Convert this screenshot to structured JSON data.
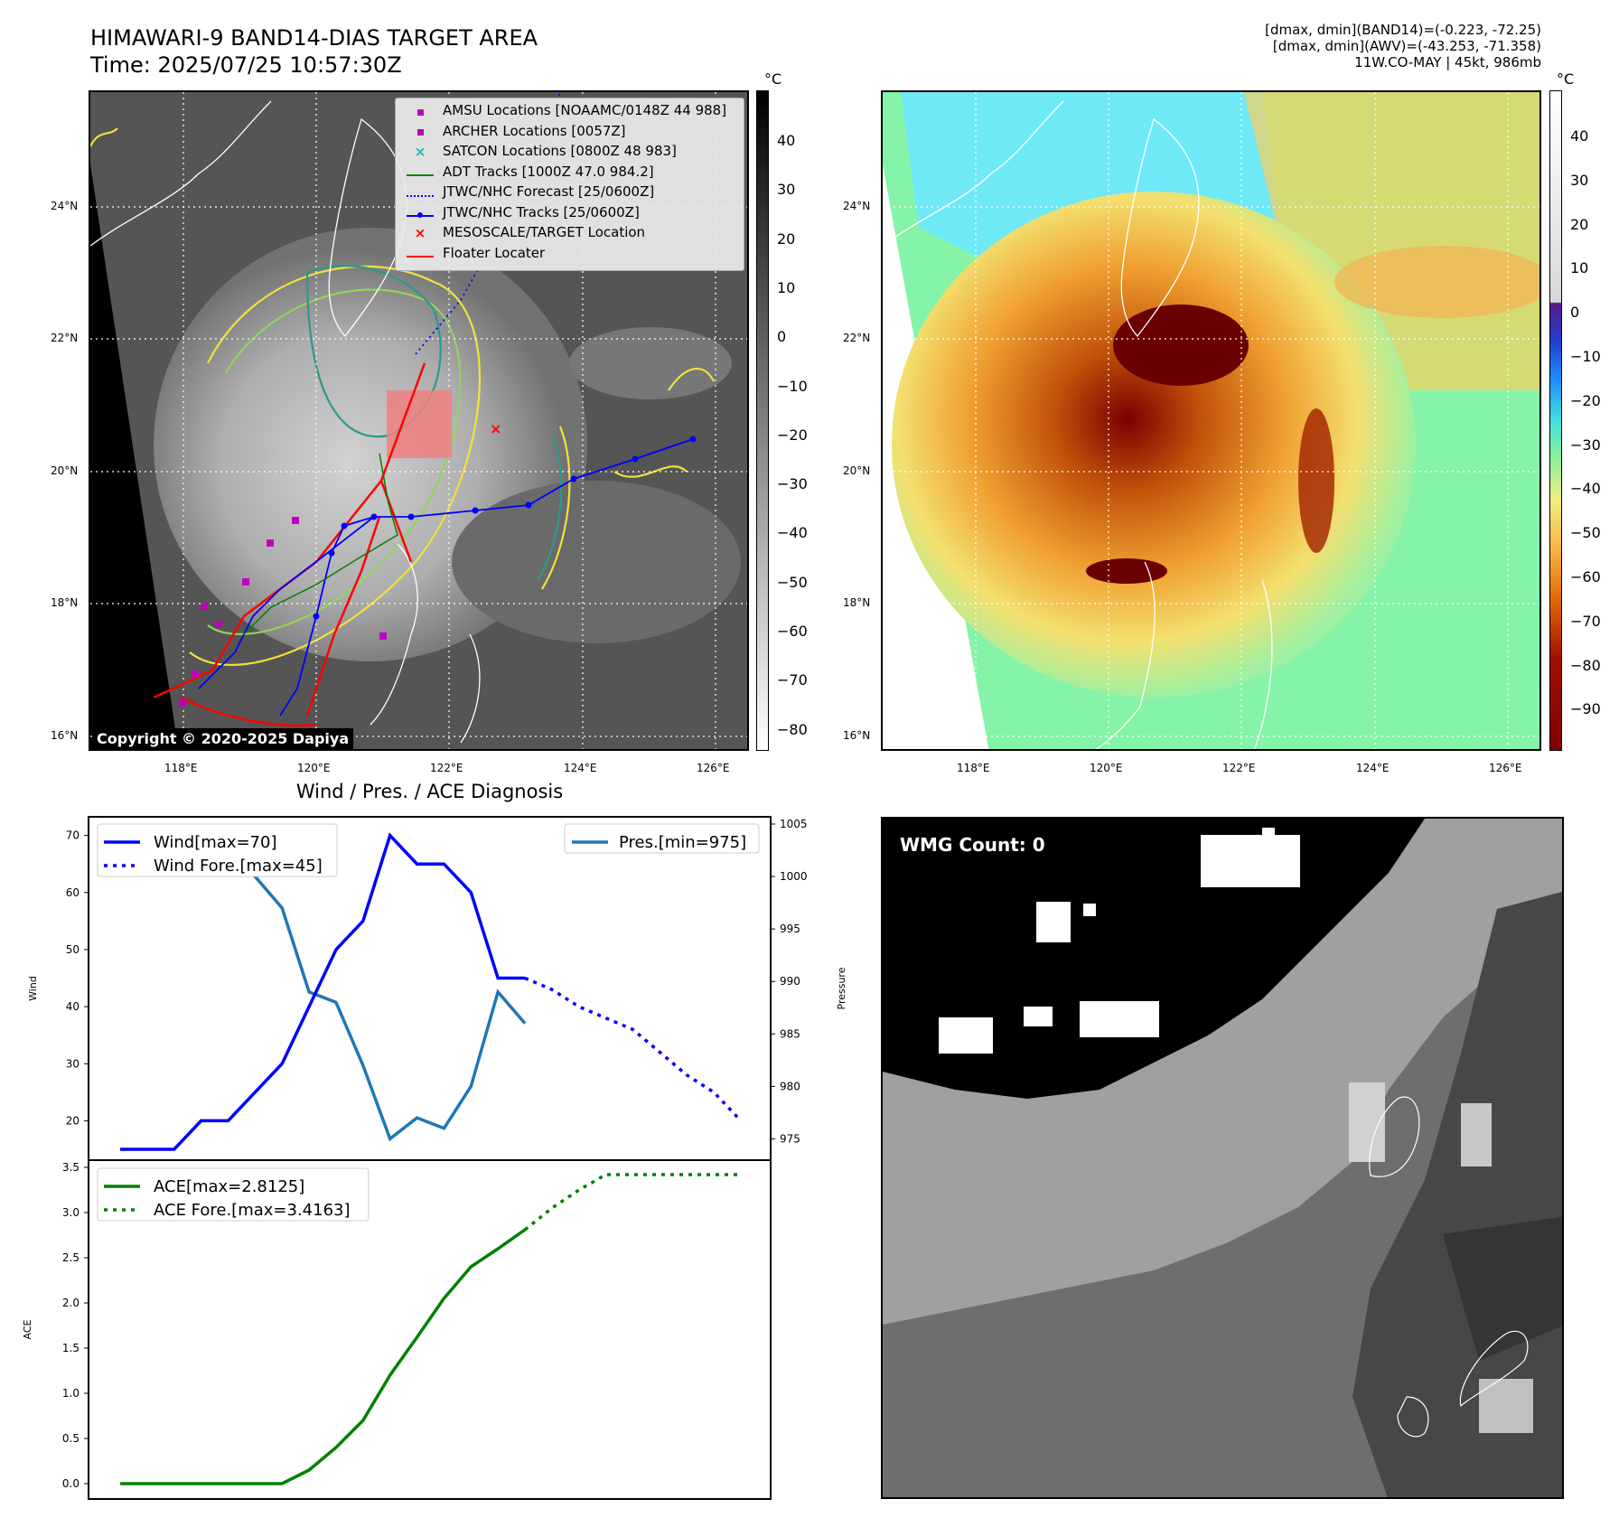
{
  "header": {
    "title_line1": "HIMAWARI-9 BAND14-DIAS TARGET AREA",
    "title_line2": "Time: 2025/07/25 10:57:30Z",
    "info_line1": "[dmax, dmin](BAND14)=(-0.223, -72.25)",
    "info_line2": "[dmax, dmin](AWV)=(-43.253, -71.358)",
    "info_line3": "11W.CO-MAY | 45kt, 986mb"
  },
  "map": {
    "lat_labels": [
      "24°N",
      "22°N",
      "20°N",
      "18°N",
      "16°N"
    ],
    "lon_labels": [
      "118°E",
      "120°E",
      "122°E",
      "124°E",
      "126°E"
    ],
    "copyright": "Copyright © 2020-2025 Dapiya",
    "legend": [
      {
        "label": "AMSU Locations [NOAAMC/0148Z 44 988]",
        "marker": "square",
        "color": "#c000c0"
      },
      {
        "label": "ARCHER Locations [0057Z]",
        "marker": "square",
        "color": "#c000c0"
      },
      {
        "label": "SATCON Locations [0800Z 48 983]",
        "marker": "x",
        "color": "#00c0c0"
      },
      {
        "label": "ADT Tracks [1000Z 47.0 984.2]",
        "marker": "line",
        "color": "#008000"
      },
      {
        "label": "JTWC/NHC Forecast [25/0600Z]",
        "marker": "dotted",
        "color": "#0000ff"
      },
      {
        "label": "JTWC/NHC Tracks [25/0600Z]",
        "marker": "line-dot",
        "color": "#0000ff"
      },
      {
        "label": "MESOSCALE/TARGET Location",
        "marker": "x",
        "color": "#ff0000"
      },
      {
        "label": "Floater Locater",
        "marker": "line",
        "color": "#ff0000"
      }
    ]
  },
  "colorbar_gray": {
    "unit": "°C",
    "labels": [
      "40",
      "30",
      "20",
      "10",
      "0",
      "−10",
      "−20",
      "−30",
      "−40",
      "−50",
      "−60",
      "−70",
      "−80"
    ]
  },
  "colorbar_color": {
    "unit": "°C",
    "labels": [
      "40",
      "30",
      "20",
      "10",
      "0",
      "−10",
      "−20",
      "−30",
      "−40",
      "−50",
      "−60",
      "−70",
      "−80",
      "−90"
    ]
  },
  "wmg": {
    "label": "WMG Count: 0"
  },
  "chart_data": [
    {
      "type": "line",
      "title": "Wind / Pres. / ACE Diagnosis",
      "ylabel": "Wind",
      "ylim": [
        15,
        72
      ],
      "yticks": [
        20,
        30,
        40,
        50,
        60,
        70
      ],
      "x": [
        0,
        1,
        2,
        3,
        4,
        5,
        6,
        7,
        8,
        9,
        10,
        11,
        12,
        13,
        14,
        15,
        16,
        17,
        18,
        19,
        20,
        21,
        22,
        23
      ],
      "series": [
        {
          "name": "Wind[max=70]",
          "style": "solid",
          "color": "#0000ff",
          "x": [
            0,
            1,
            2,
            3,
            4,
            5,
            6,
            7,
            8,
            9,
            10,
            11,
            12,
            13,
            14,
            15
          ],
          "values": [
            15,
            15,
            15,
            20,
            20,
            25,
            30,
            40,
            50,
            55,
            70,
            65,
            65,
            60,
            45,
            45
          ]
        },
        {
          "name": "Wind Fore.[max=45]",
          "style": "dotted",
          "color": "#0000ff",
          "x": [
            15,
            16,
            17,
            18,
            19,
            20,
            21,
            22,
            23
          ],
          "values": [
            45,
            43,
            40,
            38,
            36,
            32,
            28,
            25,
            20
          ]
        }
      ],
      "legend_right": "Pres.[min=975]",
      "ylabel_right": "Pressure",
      "ylim_right": [
        974,
        1005
      ],
      "yticks_right": [
        975,
        980,
        985,
        990,
        995,
        1000,
        1005
      ],
      "pressure": {
        "name": "Pres.[min=975]",
        "color": "#1f77b4",
        "x": [
          0,
          1,
          2,
          3,
          4,
          5,
          6,
          7,
          8,
          9,
          10,
          11,
          12,
          13,
          14,
          15
        ],
        "values": [
          1004,
          1004,
          1004,
          1004,
          1002,
          1000,
          997,
          989,
          988,
          982,
          975,
          977,
          976,
          980,
          989,
          986
        ]
      }
    },
    {
      "type": "line",
      "ylabel": "ACE",
      "ylim": [
        -0.05,
        3.5
      ],
      "yticks": [
        "0.0",
        "0.5",
        "1.0",
        "1.5",
        "2.0",
        "2.5",
        "3.0",
        "3.5"
      ],
      "series": [
        {
          "name": "ACE[max=2.8125]",
          "style": "solid",
          "color": "#008000",
          "x": [
            0,
            1,
            2,
            3,
            4,
            5,
            6,
            7,
            8,
            9,
            10,
            11,
            12,
            13,
            14,
            15
          ],
          "values": [
            0,
            0,
            0,
            0,
            0,
            0,
            0,
            0.15,
            0.4,
            0.7,
            1.2,
            1.62,
            2.05,
            2.4,
            2.6,
            2.81
          ]
        },
        {
          "name": "ACE Fore.[max=3.4163]",
          "style": "dotted",
          "color": "#008000",
          "x": [
            15,
            16,
            17,
            18,
            19,
            20,
            21,
            22,
            23
          ],
          "values": [
            2.81,
            3.05,
            3.25,
            3.42,
            3.42,
            3.42,
            3.42,
            3.42,
            3.42
          ]
        }
      ]
    }
  ]
}
